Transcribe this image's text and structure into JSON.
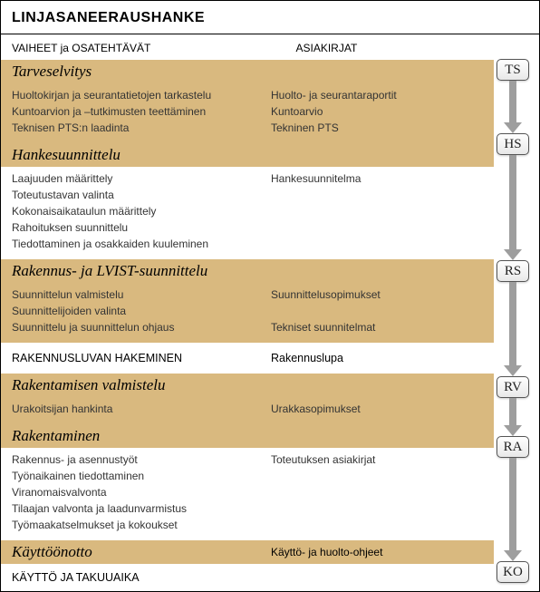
{
  "title": "LINJASANEERAUSHANKE",
  "headers": {
    "col1": "VAIHEET ja OSATEHTÄVÄT",
    "col2": "ASIAKIRJAT"
  },
  "colors": {
    "tan": "#d9b97f",
    "arrow": "#9e9e9e",
    "border": "#000000",
    "text": "#333333"
  },
  "phases": [
    {
      "title": "Tarveselvitys",
      "badge": "TS",
      "header_bg": "tan",
      "body_bg": "tan",
      "tasks": [
        "Huoltokirjan ja seurantatietojen tarkastelu",
        "Kuntoarvion ja –tutkimusten teettäminen",
        "Teknisen PTS:n laadinta"
      ],
      "docs": [
        "Huolto- ja seurantaraportit",
        "Kuntoarvio",
        "Tekninen PTS"
      ]
    },
    {
      "title": "Hankesuunnittelu",
      "badge": "HS",
      "header_bg": "tan",
      "body_bg": "white",
      "tasks": [
        "Laajuuden määrittely",
        "Toteutustavan valinta",
        "Kokonaisaikataulun määrittely",
        "Rahoituksen suunnittelu",
        "Tiedottaminen ja osakkaiden kuuleminen"
      ],
      "docs": [
        "Hankesuunnitelma"
      ]
    },
    {
      "title": "Rakennus- ja LVIST-suunnittelu",
      "badge": "RS",
      "header_bg": "tan",
      "body_bg": "tan",
      "tasks": [
        "Suunnittelun valmistelu",
        "Suunnittelijoiden valinta",
        "Suunnittelu ja suunnittelun ohjaus"
      ],
      "docs": [
        "Suunnittelusopimukset",
        "",
        "Tekniset suunnitelmat"
      ]
    }
  ],
  "interstitial": {
    "task": "RAKENNUSLUVAN HAKEMINEN",
    "doc": "Rakennuslupa"
  },
  "phases2": [
    {
      "title": "Rakentamisen valmistelu",
      "badge": "RV",
      "header_bg": "tan",
      "body_bg": "tan",
      "tasks": [
        "Urakoitsijan hankinta"
      ],
      "docs": [
        "Urakkasopimukset"
      ]
    },
    {
      "title": "Rakentaminen",
      "badge": "RA",
      "header_bg": "tan",
      "body_bg": "white",
      "tasks": [
        "Rakennus- ja asennustyöt",
        "Työnaikainen tiedottaminen",
        "Viranomaisvalvonta",
        "Tilaajan valvonta ja laadunvarmistus",
        "Työmaakatselmukset ja kokoukset"
      ],
      "docs": [
        "Toteutuksen asiakirjat"
      ]
    },
    {
      "title": "Käyttöönotto",
      "badge": "KO",
      "header_bg": "tan",
      "body_bg": "tan",
      "tasks": [],
      "docs": [
        "Käyttö- ja huolto-ohjeet"
      ],
      "single_row": true
    }
  ],
  "footer": "KÄYTTÖ JA TAKUUAIKA",
  "arrow_heights": [
    58,
    116,
    104,
    42,
    114
  ]
}
